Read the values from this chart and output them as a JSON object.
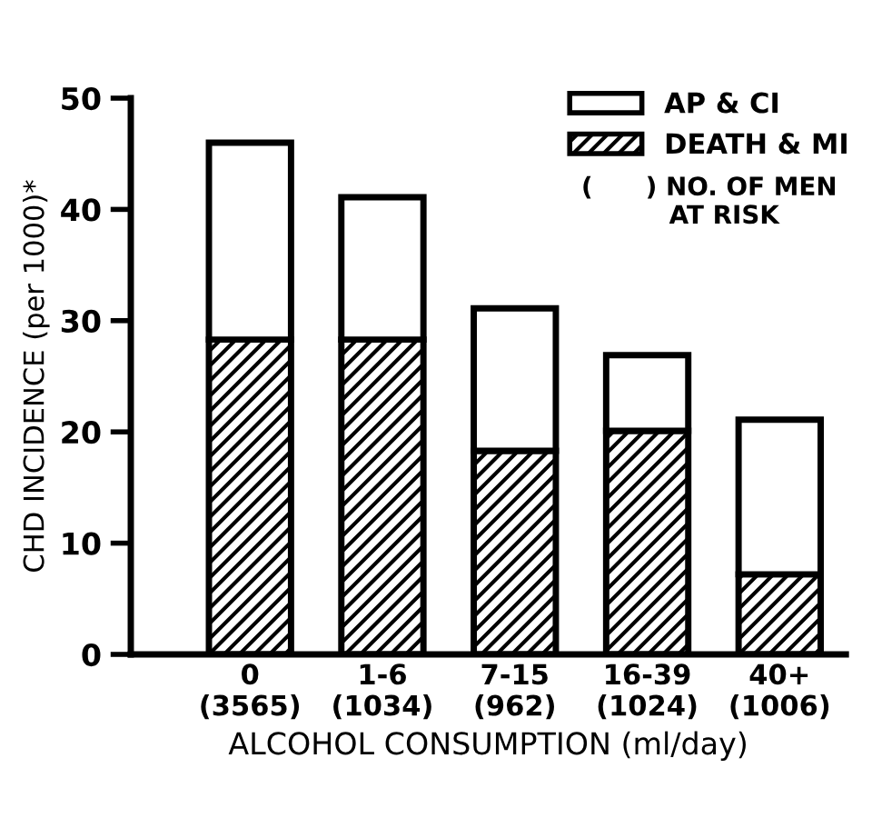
{
  "chart_data": {
    "type": "bar",
    "stacked": true,
    "categories": [
      "0\n(3565)",
      "1-6\n(1034)",
      "7-15\n(962)",
      "16-39\n(1024)",
      "40+\n(1006)"
    ],
    "series": [
      {
        "name": "DEATH & MI",
        "color": "#000000",
        "values": [
          28.3,
          28.3,
          18.3,
          20.1,
          7.2
        ]
      },
      {
        "name": "AP & CI",
        "color": "#ffffff",
        "values": [
          17.7,
          12.8,
          12.8,
          6.8,
          13.9
        ]
      }
    ],
    "xlabel": "ALCOHOL CONSUMPTION (ml/day)",
    "ylabel": "CHD INCIDENCE (per 1000)*",
    "ylim": [
      0,
      50
    ],
    "yticks": [
      0,
      10,
      20,
      30,
      40,
      50
    ],
    "grid": false,
    "legend": "top right",
    "annotations": [
      "(      ) NO. OF MEN\n          AT RISK"
    ]
  }
}
